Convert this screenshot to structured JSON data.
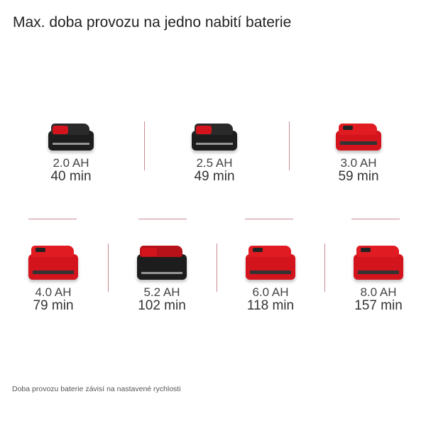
{
  "title": "Max. doba provozu na jedno nabití baterie",
  "accent_color": "#d3141c",
  "divider_color": "#c98a93",
  "batteries": [
    {
      "capacity": "2.0 AH",
      "runtime": "40 min",
      "icon": "battery-pack-icon",
      "style": "black"
    },
    {
      "capacity": "2.5 AH",
      "runtime": "49 min",
      "icon": "battery-pack-icon",
      "style": "black"
    },
    {
      "capacity": "3.0 AH",
      "runtime": "59 min",
      "icon": "battery-pack-icon",
      "style": "red"
    },
    {
      "capacity": "4.0 AH",
      "runtime": "79 min",
      "icon": "battery-pack-icon",
      "style": "red"
    },
    {
      "capacity": "5.2 AH",
      "runtime": "102 min",
      "icon": "battery-pack-icon",
      "style": "black"
    },
    {
      "capacity": "6.0 AH",
      "runtime": "118 min",
      "icon": "battery-pack-icon",
      "style": "red"
    },
    {
      "capacity": "8.0 AH",
      "runtime": "157 min",
      "icon": "battery-pack-icon",
      "style": "red"
    }
  ],
  "footnote": "Doba provozu baterie závisí na nastavené rychlosti"
}
